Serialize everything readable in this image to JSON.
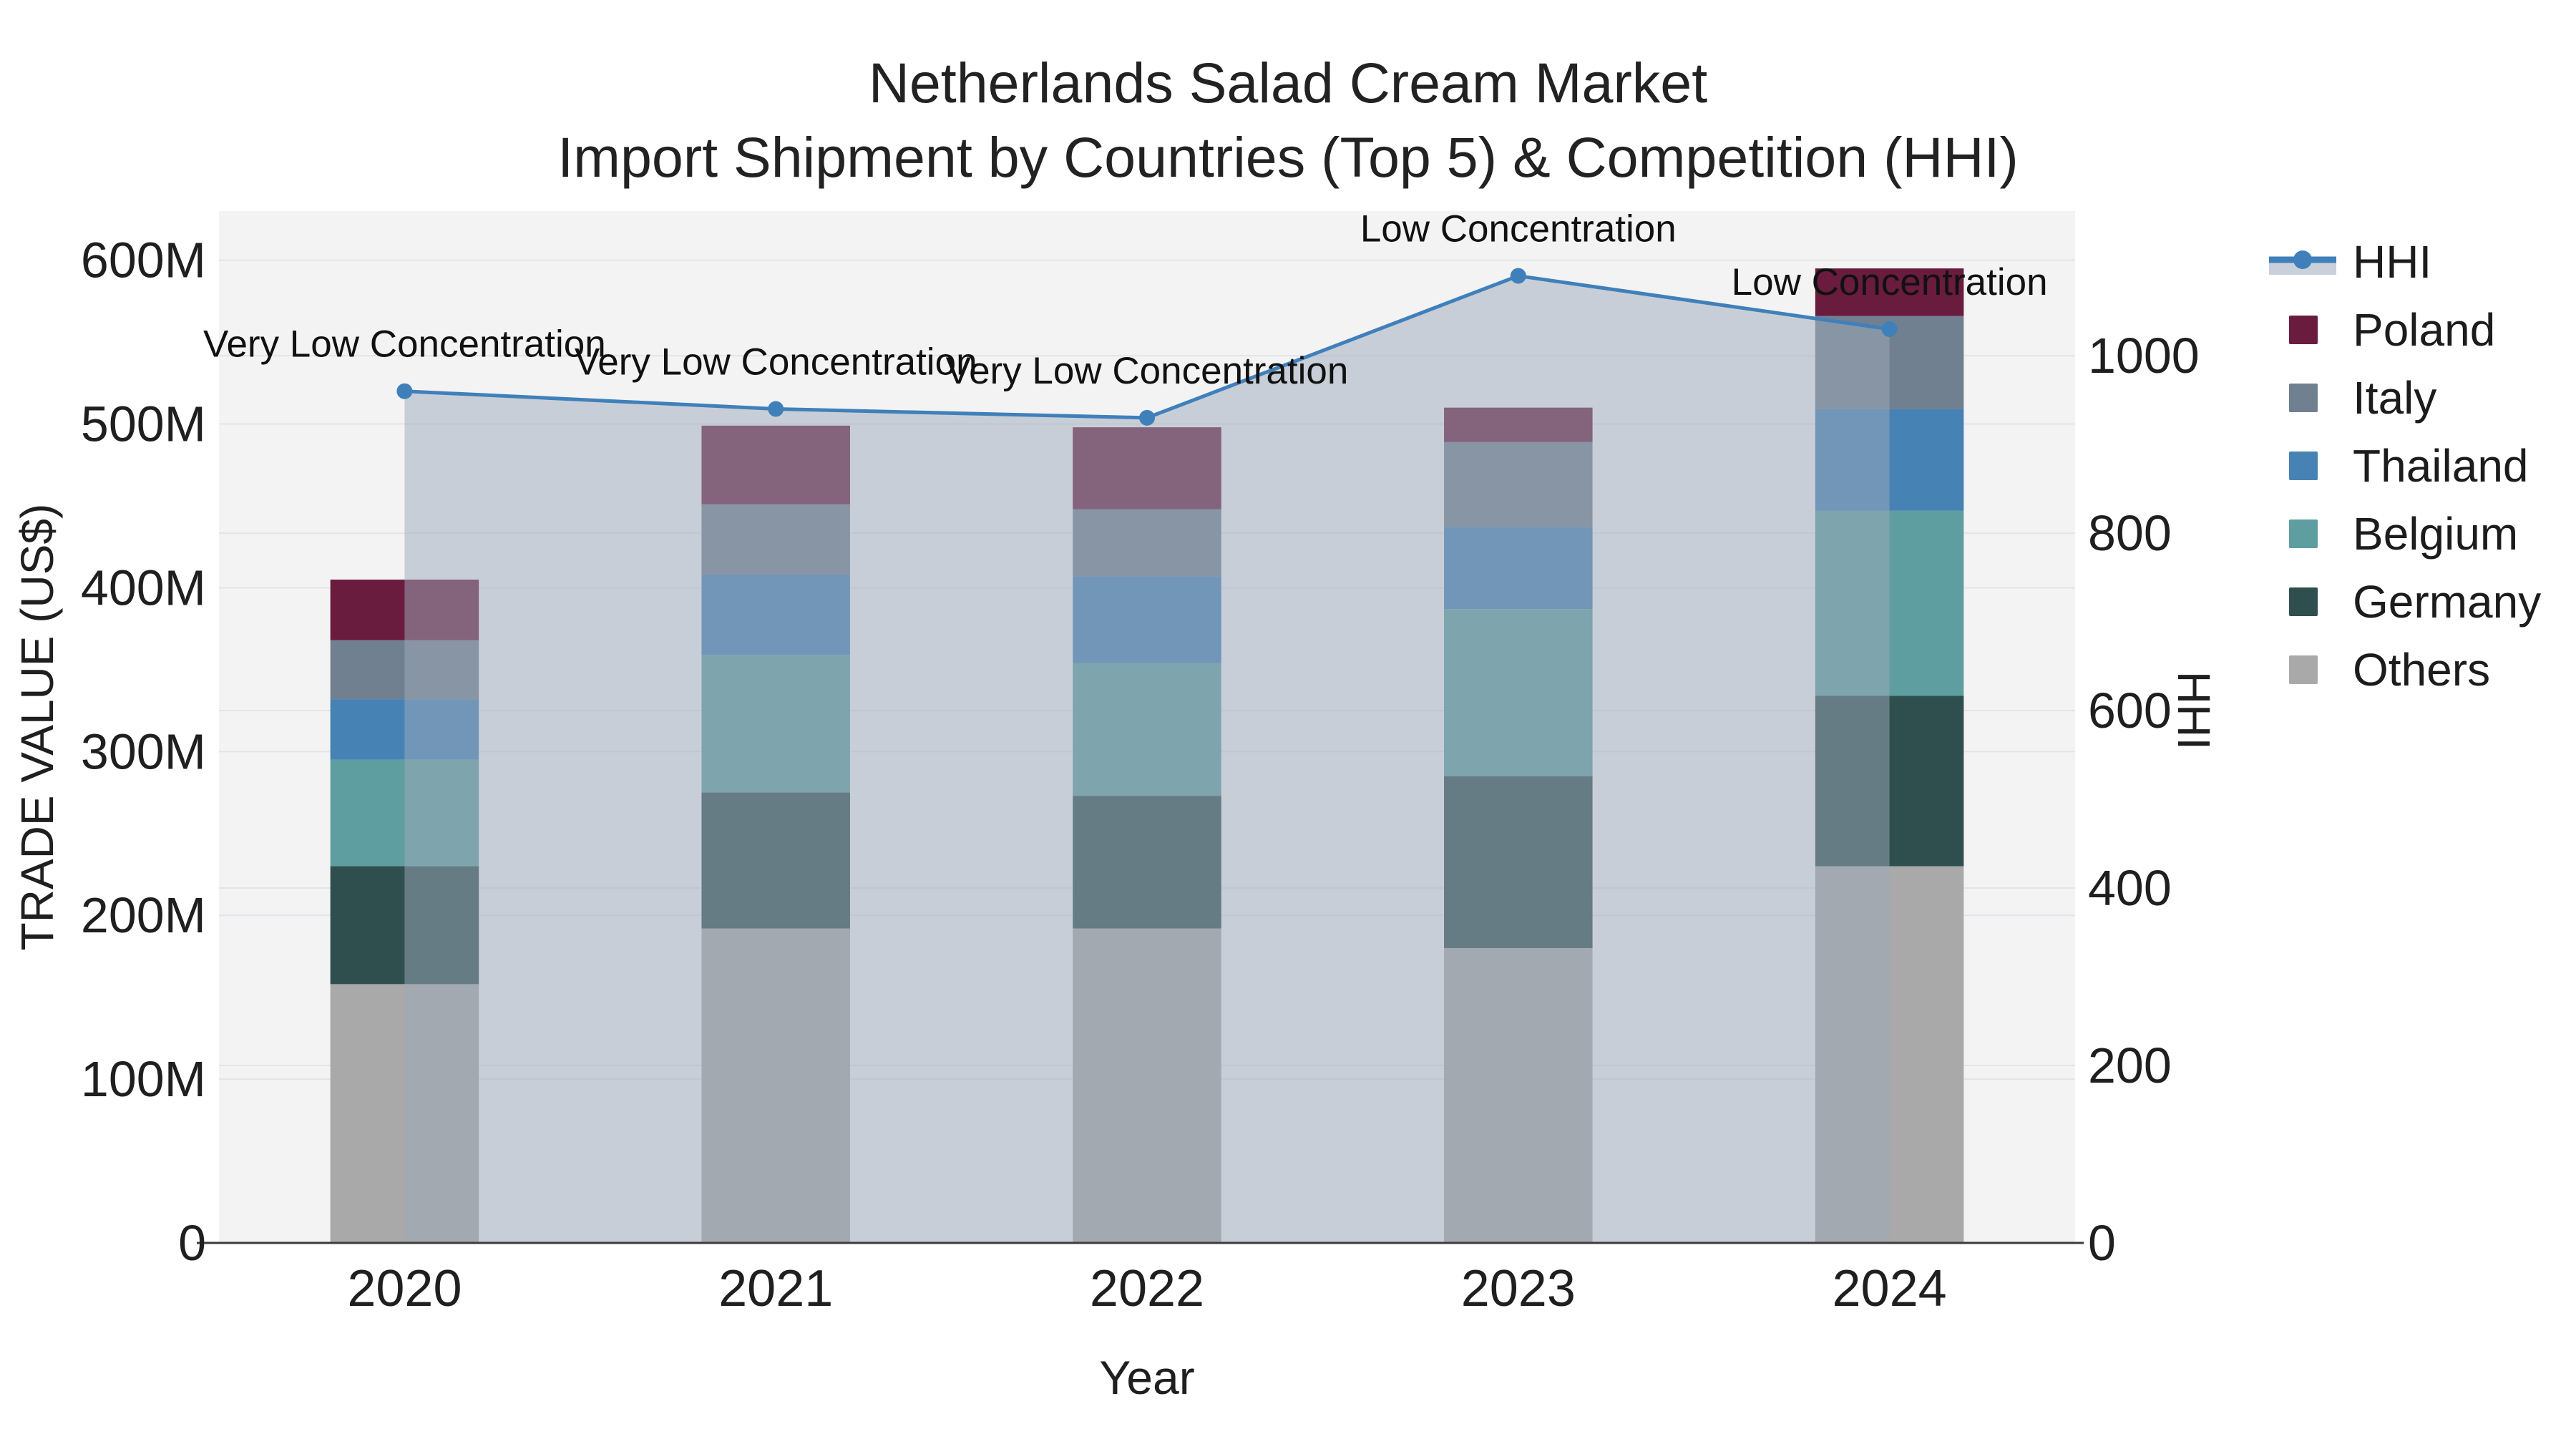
{
  "title": {
    "line1": "Netherlands Salad Cream Market",
    "line2": "Import Shipment by Countries (Top 5) & Competition (HHI)"
  },
  "axes": {
    "x_title": "Year",
    "y_left_title": "TRADE VALUE (US$)",
    "y_right_title": "HHI"
  },
  "legend": {
    "items": [
      {
        "label": "HHI",
        "type": "line",
        "color": "#4080ba",
        "band_color": "#c9d0da"
      },
      {
        "label": "Poland",
        "type": "swatch",
        "color": "#6a1c3e"
      },
      {
        "label": "Italy",
        "type": "swatch",
        "color": "#708090"
      },
      {
        "label": "Thailand",
        "type": "swatch",
        "color": "#4682b4"
      },
      {
        "label": "Belgium",
        "type": "swatch",
        "color": "#5f9ea0"
      },
      {
        "label": "Germany",
        "type": "swatch",
        "color": "#2f4f4f"
      },
      {
        "label": "Others",
        "type": "swatch",
        "color": "#a9a9a9"
      }
    ]
  },
  "chart_data": {
    "type": "bar",
    "subtype": "stacked-bar-with-line",
    "title": "Netherlands Salad Cream Market — Import Shipment by Countries (Top 5) & Competition (HHI)",
    "xlabel": "Year",
    "ylabel_left": "TRADE VALUE (US$)",
    "ylabel_right": "HHI",
    "categories": [
      "2020",
      "2021",
      "2022",
      "2023",
      "2024"
    ],
    "series": [
      {
        "name": "Others",
        "color": "#a9a9a9",
        "values": [
          158,
          192,
          192,
          180,
          230
        ]
      },
      {
        "name": "Germany",
        "color": "#2f4f4f",
        "values": [
          72,
          83,
          81,
          105,
          104
        ]
      },
      {
        "name": "Belgium",
        "color": "#5f9ea0",
        "values": [
          65,
          84,
          81,
          102,
          113
        ]
      },
      {
        "name": "Thailand",
        "color": "#4682b4",
        "values": [
          37,
          49,
          53,
          50,
          62
        ]
      },
      {
        "name": "Italy",
        "color": "#708090",
        "values": [
          36,
          43,
          41,
          52,
          57
        ]
      },
      {
        "name": "Poland",
        "color": "#6a1c3e",
        "values": [
          37,
          48,
          50,
          21,
          29
        ]
      }
    ],
    "values_unit": "million US$",
    "line": {
      "name": "HHI",
      "color": "#4080ba",
      "fill_color": "rgba(158,170,186,0.5)",
      "values": [
        960,
        940,
        930,
        1090,
        1030
      ]
    },
    "annotations": [
      {
        "category_index": 0,
        "text": "Very Low Concentration"
      },
      {
        "category_index": 1,
        "text": "Very Low Concentration"
      },
      {
        "category_index": 2,
        "text": "Very Low Concentration"
      },
      {
        "category_index": 3,
        "text": "Low Concentration"
      },
      {
        "category_index": 4,
        "text": "Low Concentration"
      }
    ],
    "y_left": {
      "max": 630,
      "ticks": [
        {
          "v": 0,
          "label": "0"
        },
        {
          "v": 100,
          "label": "100M"
        },
        {
          "v": 200,
          "label": "200M"
        },
        {
          "v": 300,
          "label": "300M"
        },
        {
          "v": 400,
          "label": "400M"
        },
        {
          "v": 500,
          "label": "500M"
        },
        {
          "v": 600,
          "label": "600M"
        }
      ]
    },
    "y_right": {
      "max": 1163,
      "ticks": [
        {
          "v": 0,
          "label": "0"
        },
        {
          "v": 200,
          "label": "200"
        },
        {
          "v": 400,
          "label": "400"
        },
        {
          "v": 600,
          "label": "600"
        },
        {
          "v": 800,
          "label": "800"
        },
        {
          "v": 1000,
          "label": "1000"
        }
      ]
    },
    "style": {
      "plot_bg": "#f3f3f4",
      "grid_color": "#e4e4e8",
      "axis_line_color": "#3c3c3c",
      "text_color": "#1f1f1f",
      "annotation_color": "#111111"
    },
    "layout_hints": {
      "legend_position": "right",
      "grid": true,
      "bar_rel_width": 0.4
    }
  }
}
